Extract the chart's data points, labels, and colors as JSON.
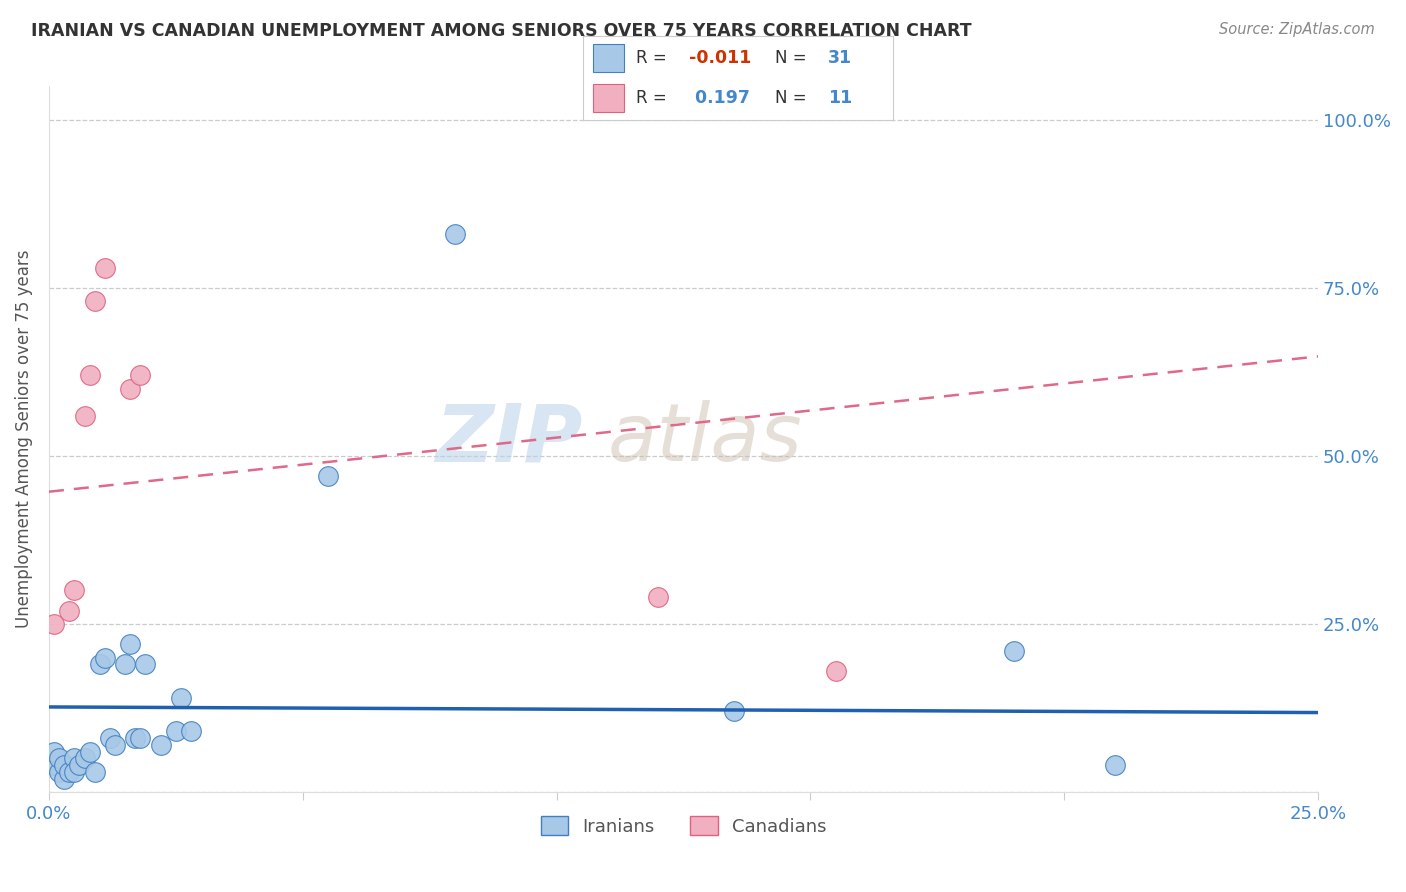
{
  "title": "IRANIAN VS CANADIAN UNEMPLOYMENT AMONG SENIORS OVER 75 YEARS CORRELATION CHART",
  "source": "Source: ZipAtlas.com",
  "ylabel": "Unemployment Among Seniors over 75 years",
  "xlim": [
    0.0,
    0.25
  ],
  "ylim": [
    0.0,
    1.05
  ],
  "iranian_x": [
    0.001,
    0.001,
    0.002,
    0.002,
    0.003,
    0.003,
    0.004,
    0.005,
    0.005,
    0.006,
    0.007,
    0.008,
    0.009,
    0.01,
    0.011,
    0.012,
    0.013,
    0.015,
    0.016,
    0.017,
    0.018,
    0.019,
    0.022,
    0.025,
    0.026,
    0.028,
    0.055,
    0.08,
    0.135,
    0.19,
    0.21
  ],
  "iranian_y": [
    0.04,
    0.06,
    0.03,
    0.05,
    0.02,
    0.04,
    0.03,
    0.05,
    0.03,
    0.04,
    0.05,
    0.06,
    0.03,
    0.19,
    0.2,
    0.08,
    0.07,
    0.19,
    0.22,
    0.08,
    0.08,
    0.19,
    0.07,
    0.09,
    0.14,
    0.09,
    0.47,
    0.83,
    0.12,
    0.21,
    0.04
  ],
  "canadian_x": [
    0.001,
    0.004,
    0.005,
    0.007,
    0.008,
    0.009,
    0.011,
    0.016,
    0.018,
    0.12,
    0.155
  ],
  "canadian_y": [
    0.25,
    0.27,
    0.3,
    0.56,
    0.62,
    0.73,
    0.78,
    0.6,
    0.62,
    0.29,
    0.18
  ],
  "iranian_color": "#a8c8e8",
  "canadian_color": "#f0b0c0",
  "iranian_edge_color": "#4080c0",
  "canadian_edge_color": "#e06080",
  "iranian_trend_color": "#2060b0",
  "canadian_trend_color": "#e06888",
  "iranian_R": -0.011,
  "iranian_N": 31,
  "canadian_R": 0.197,
  "canadian_N": 11,
  "watermark_zip": "ZIP",
  "watermark_atlas": "atlas",
  "background_color": "#ffffff",
  "grid_color": "#cccccc",
  "tick_label_color": "#4488cc",
  "title_color": "#333333",
  "source_color": "#888888",
  "ylabel_color": "#555555",
  "legend_r_color": "#cc3300",
  "legend_n_color": "#4488cc",
  "legend_text_color": "#333333"
}
